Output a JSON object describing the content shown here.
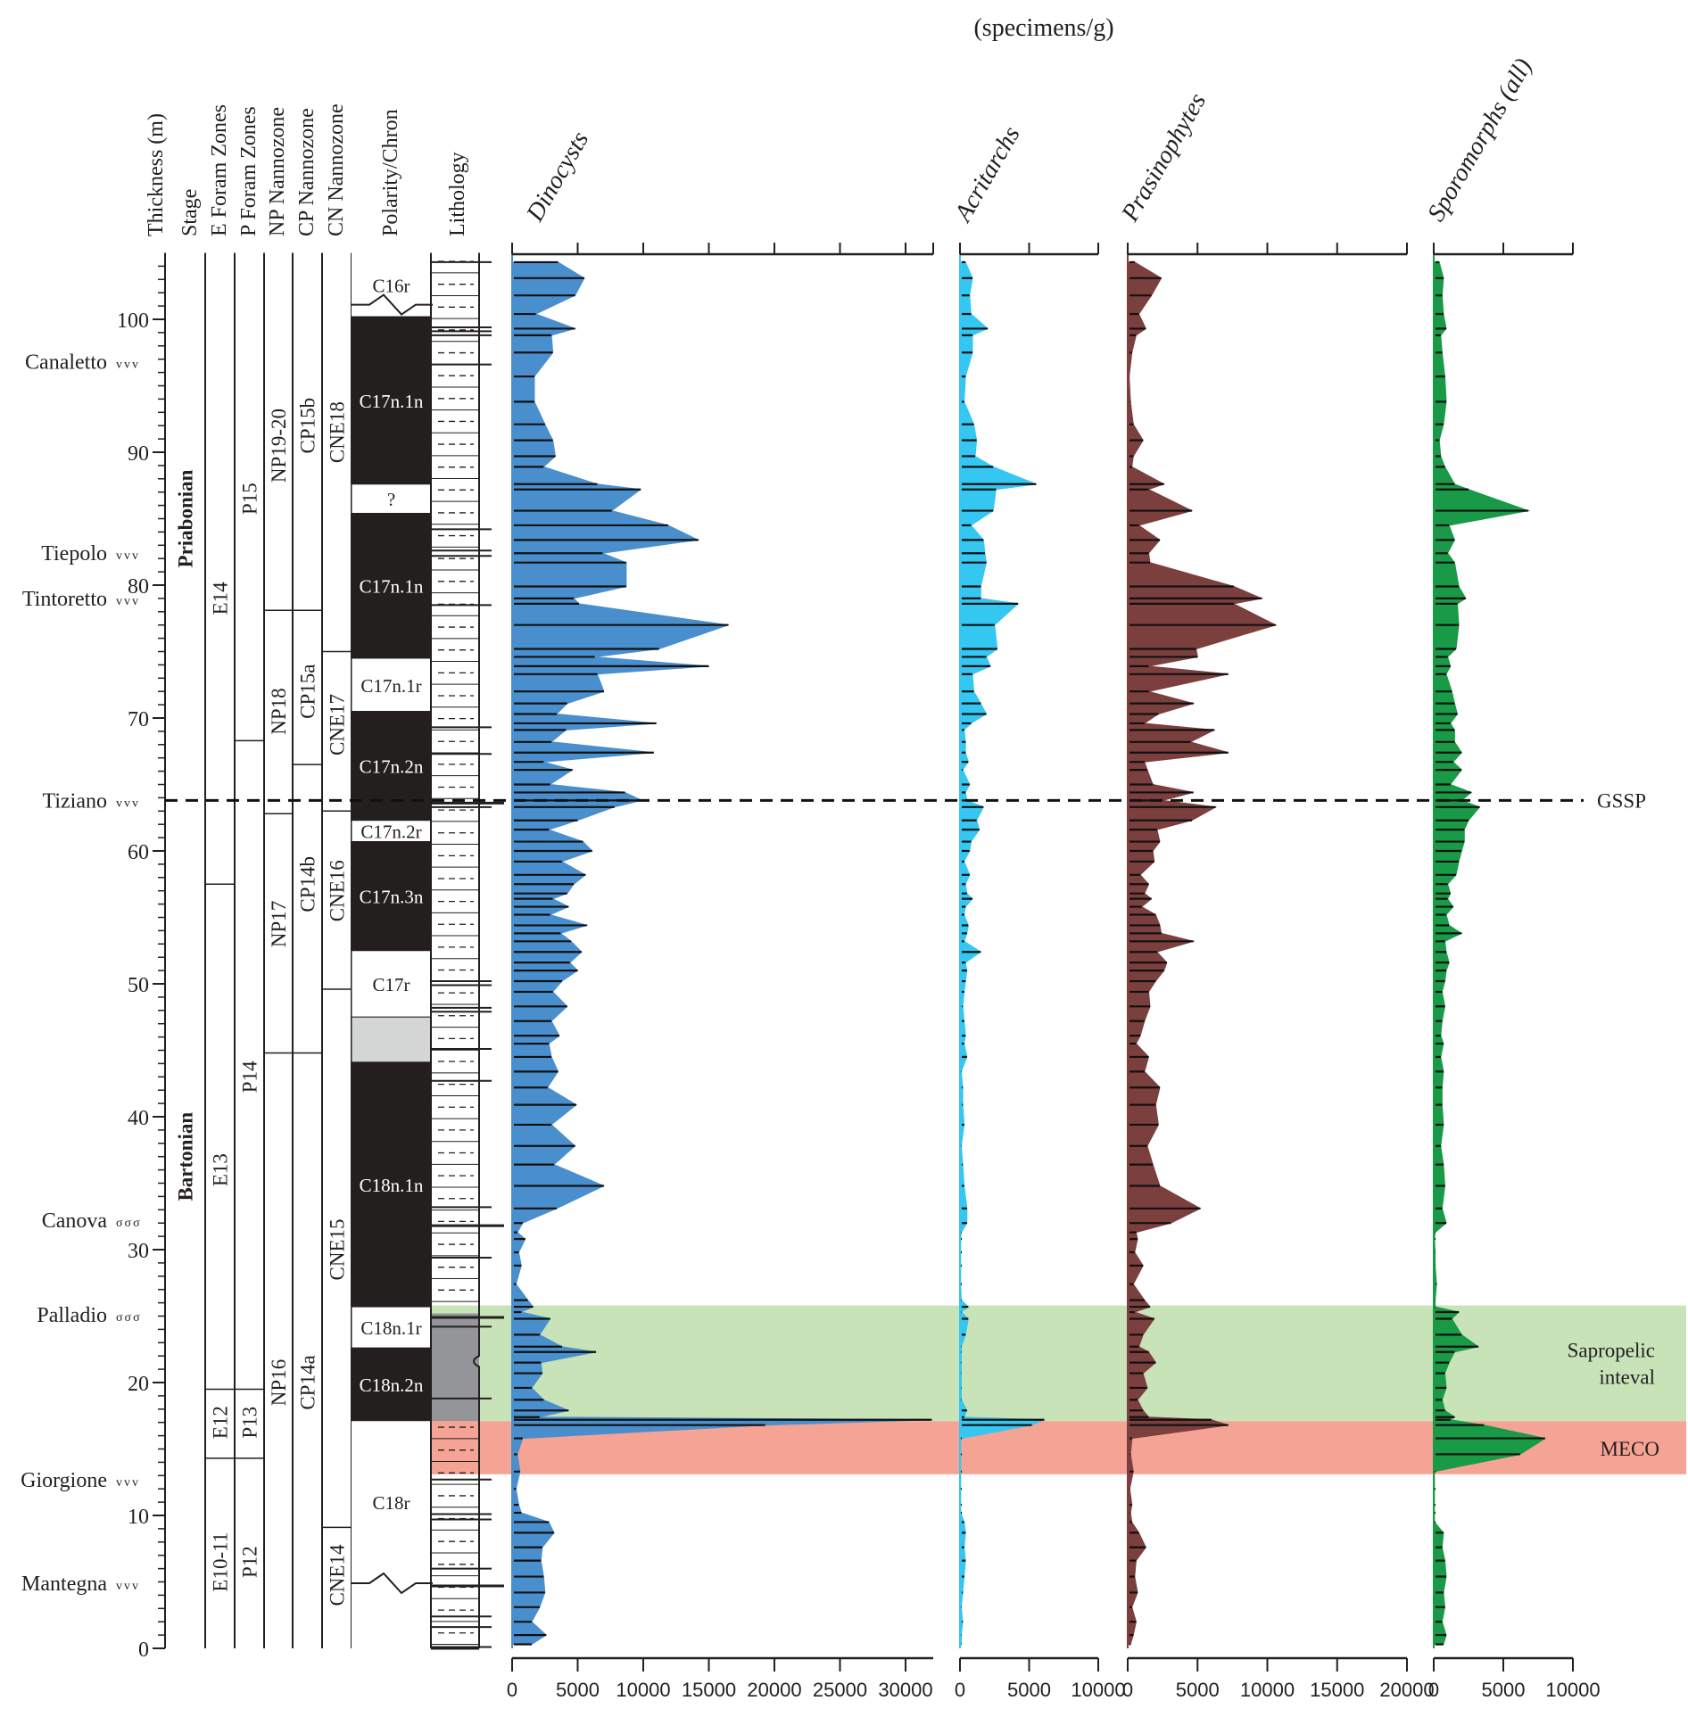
{
  "chart_data": {
    "type": "area",
    "title": "(specimens/g)",
    "ylabel": "Thickness (m)",
    "ylim": [
      0,
      105
    ],
    "y_ticks": [
      0,
      10,
      20,
      30,
      40,
      50,
      60,
      70,
      80,
      90,
      100
    ],
    "column_headers": [
      "Thickness (m)",
      "Stage",
      "E Foram Zones",
      "P Foram Zones",
      "NP Nannozone",
      "CP Nannozone",
      "CN Nannozone",
      "Polarity/Chron",
      "Lithology"
    ],
    "stages": [
      {
        "name": "Priabonian",
        "from": 63.8,
        "to": 105
      },
      {
        "name": "Bartonian",
        "from": 0,
        "to": 63.8
      }
    ],
    "e_foram_zones": [
      {
        "name": "E14",
        "from": 57.5,
        "to": 105
      },
      {
        "name": "E13",
        "from": 19.5,
        "to": 57.5
      },
      {
        "name": "E12",
        "from": 14.3,
        "to": 19.5
      },
      {
        "name": "E10-11",
        "from": 0,
        "to": 14.3
      }
    ],
    "p_foram_zones": [
      {
        "name": "P15",
        "from": 68.3,
        "to": 105
      },
      {
        "name": "P14",
        "from": 19.5,
        "to": 68.3
      },
      {
        "name": "P13",
        "from": 14.3,
        "to": 19.5
      },
      {
        "name": "P12",
        "from": 0,
        "to": 14.3
      }
    ],
    "np_nannozones": [
      {
        "name": "NP19-20",
        "from": 78.1,
        "to": 105
      },
      {
        "name": "NP18",
        "from": 62.8,
        "to": 78.1
      },
      {
        "name": "NP17",
        "from": 44.8,
        "to": 62.8
      },
      {
        "name": "NP16",
        "from": 0,
        "to": 44.8
      }
    ],
    "cp_nannozones": [
      {
        "name": "CP15b",
        "from": 78.1,
        "to": 105
      },
      {
        "name": "CP15a",
        "from": 66.5,
        "to": 78.1
      },
      {
        "name": "CP14b",
        "from": 44.8,
        "to": 66.5
      },
      {
        "name": "CP14a",
        "from": 0,
        "to": 44.8
      }
    ],
    "cn_nannozones": [
      {
        "name": "CNE18",
        "from": 75.0,
        "to": 105
      },
      {
        "name": "CNE17",
        "from": 63.0,
        "to": 75.0
      },
      {
        "name": "CNE16",
        "from": 49.6,
        "to": 63.0
      },
      {
        "name": "CNE15",
        "from": 9.1,
        "to": 49.6
      },
      {
        "name": "CNE14",
        "from": 0,
        "to": 9.1
      }
    ],
    "polarity_chrons": [
      {
        "name": "C16r",
        "from": 100.2,
        "to": 105,
        "polarity": "reversed"
      },
      {
        "name": "C17n.1n",
        "from": 87.6,
        "to": 100.2,
        "polarity": "normal"
      },
      {
        "name": "?",
        "from": 85.4,
        "to": 87.6,
        "polarity": "unknown"
      },
      {
        "name": "C17n.1n",
        "from": 74.5,
        "to": 85.4,
        "polarity": "normal"
      },
      {
        "name": "C17n.1r",
        "from": 70.5,
        "to": 74.5,
        "polarity": "reversed"
      },
      {
        "name": "C17n.2n",
        "from": 62.3,
        "to": 70.5,
        "polarity": "normal"
      },
      {
        "name": "C17n.2r",
        "from": 60.7,
        "to": 62.3,
        "polarity": "reversed"
      },
      {
        "name": "C17n.3n",
        "from": 52.5,
        "to": 60.7,
        "polarity": "normal"
      },
      {
        "name": "C17r",
        "from": 47.5,
        "to": 52.5,
        "polarity": "reversed"
      },
      {
        "name": "",
        "from": 44.1,
        "to": 47.5,
        "polarity": "uncertain"
      },
      {
        "name": "C18n.1n",
        "from": 25.7,
        "to": 44.1,
        "polarity": "normal"
      },
      {
        "name": "C18n.1r",
        "from": 22.6,
        "to": 25.7,
        "polarity": "reversed"
      },
      {
        "name": "C18n.2n",
        "from": 17.1,
        "to": 22.6,
        "polarity": "normal"
      },
      {
        "name": "C18r",
        "from": 0,
        "to": 17.1,
        "polarity": "reversed"
      }
    ],
    "marker_beds": [
      {
        "name": "Canaletto",
        "m": 96.8,
        "symbol": "vvv"
      },
      {
        "name": "Tiepolo",
        "m": 82.4,
        "symbol": "vvv"
      },
      {
        "name": "Tintoretto",
        "m": 79.0,
        "symbol": "vvv"
      },
      {
        "name": "Tiziano",
        "m": 63.8,
        "symbol": "vvv"
      },
      {
        "name": "Canova",
        "m": 32.2,
        "symbol": "σσσ"
      },
      {
        "name": "Palladio",
        "m": 25.1,
        "symbol": "σσσ"
      },
      {
        "name": "Giorgione",
        "m": 12.7,
        "symbol": "vvv"
      },
      {
        "name": "Mantegna",
        "m": 4.9,
        "symbol": "vvv"
      }
    ],
    "annotations": [
      {
        "label": "GSSP",
        "type": "line",
        "m": 63.8
      },
      {
        "label": "Sapropelic inteval",
        "type": "band",
        "from": 17.1,
        "to": 25.8,
        "color": "#c8e3b8"
      },
      {
        "label": "MECO",
        "type": "band",
        "from": 13.1,
        "to": 17.1,
        "color": "#f5a394"
      }
    ],
    "depths": [
      104.3,
      103.1,
      101.8,
      100.4,
      99.3,
      98.8,
      97.5,
      95.7,
      93.8,
      92.1,
      90.9,
      89.7,
      88.9,
      87.6,
      87.2,
      85.6,
      84.5,
      83.4,
      82.4,
      81.7,
      79.9,
      79.0,
      78.6,
      77.0,
      75.2,
      74.6,
      73.9,
      73.3,
      72.0,
      71.1,
      70.3,
      69.6,
      69.1,
      68.2,
      67.4,
      66.7,
      66.1,
      65.0,
      64.4,
      63.8,
      63.3,
      62.3,
      61.6,
      60.7,
      60.0,
      59.2,
      58.2,
      57.5,
      56.8,
      56.4,
      55.8,
      55.2,
      54.4,
      53.8,
      53.2,
      52.4,
      51.6,
      51.0,
      50.2,
      49.4,
      48.3,
      47.2,
      46.1,
      45.5,
      44.5,
      43.4,
      42.2,
      40.9,
      39.4,
      37.8,
      36.4,
      34.8,
      33.1,
      32.0,
      31.3,
      30.8,
      29.8,
      28.8,
      27.4,
      26.2,
      25.7,
      25.3,
      24.8,
      23.6,
      22.7,
      22.3,
      21.5,
      20.7,
      19.6,
      18.7,
      17.9,
      17.4,
      17.2,
      16.8,
      15.8,
      14.6,
      13.3,
      12.0,
      10.8,
      10.2,
      9.5,
      8.7,
      7.6,
      6.6,
      5.4,
      4.2,
      3.1,
      2.0,
      1.0,
      0.3
    ],
    "series": [
      {
        "name": "Dinocysts",
        "color": "#4a8fcd",
        "xlim": [
          0,
          32000
        ],
        "x_ticks": [
          0,
          5000,
          10000,
          15000,
          20000,
          25000,
          30000
        ],
        "values": [
          3500,
          5500,
          4800,
          1800,
          4800,
          3000,
          3100,
          1700,
          1700,
          2500,
          3100,
          3300,
          2400,
          6500,
          9800,
          7600,
          11900,
          14200,
          6900,
          8700,
          8700,
          4700,
          5100,
          16500,
          11200,
          6300,
          15000,
          6500,
          7000,
          4200,
          3400,
          11000,
          4100,
          3000,
          10800,
          2400,
          4600,
          2900,
          8600,
          9900,
          7800,
          5000,
          2800,
          5400,
          6100,
          3800,
          5600,
          4700,
          4200,
          3100,
          4300,
          2900,
          5700,
          3700,
          4500,
          5300,
          4400,
          5000,
          3800,
          3100,
          4200,
          3000,
          3600,
          2800,
          3000,
          3500,
          2700,
          4900,
          3000,
          4800,
          3200,
          7000,
          3400,
          800,
          400,
          1000,
          500,
          700,
          300,
          1200,
          1600,
          700,
          2900,
          2100,
          3800,
          6400,
          2200,
          2300,
          1500,
          2400,
          4300,
          2100,
          32000,
          19300,
          800,
          400,
          600,
          300,
          500,
          700,
          2800,
          3200,
          2300,
          2200,
          2400,
          2500,
          2100,
          1500,
          2600,
          1500
        ]
      },
      {
        "name": "Acritarchs",
        "color": "#33c7f2",
        "xlim": [
          0,
          10000
        ],
        "x_ticks": [
          0,
          5000,
          10000
        ],
        "values": [
          400,
          900,
          700,
          800,
          2000,
          900,
          900,
          400,
          300,
          1000,
          1200,
          1100,
          2400,
          5500,
          2600,
          2400,
          800,
          1700,
          1800,
          1900,
          1500,
          1500,
          4200,
          2500,
          2700,
          1900,
          2200,
          900,
          1000,
          1500,
          1900,
          800,
          300,
          400,
          400,
          600,
          200,
          700,
          400,
          500,
          1700,
          1200,
          1400,
          800,
          700,
          300,
          700,
          400,
          500,
          900,
          400,
          300,
          600,
          500,
          300,
          1500,
          400,
          500,
          400,
          300,
          200,
          300,
          400,
          300,
          500,
          100,
          200,
          200,
          300,
          100,
          200,
          300,
          500,
          500,
          100,
          50,
          50,
          50,
          50,
          100,
          600,
          100,
          600,
          400,
          100,
          100,
          100,
          100,
          100,
          100,
          500,
          300,
          6100,
          5200,
          50,
          50,
          50,
          50,
          50,
          50,
          300,
          400,
          300,
          400,
          300,
          200,
          100,
          200,
          100,
          100
        ]
      },
      {
        "name": "Prasinophytes",
        "color": "#7b3f3e",
        "xlim": [
          0,
          20000
        ],
        "x_ticks": [
          0,
          5000,
          10000,
          15000,
          20000
        ],
        "values": [
          500,
          2400,
          1700,
          800,
          1300,
          600,
          300,
          100,
          200,
          400,
          1100,
          400,
          300,
          2600,
          1500,
          4600,
          800,
          2300,
          1500,
          1600,
          7600,
          9600,
          7600,
          10600,
          4900,
          5000,
          1500,
          7200,
          1500,
          4700,
          2200,
          1200,
          6200,
          4500,
          7200,
          1200,
          1400,
          1800,
          4700,
          2500,
          6300,
          4600,
          2100,
          2300,
          1800,
          1900,
          900,
          1500,
          1200,
          1700,
          1000,
          2000,
          2300,
          2400,
          4700,
          2100,
          2800,
          2600,
          2000,
          1500,
          1600,
          1200,
          900,
          600,
          1500,
          1200,
          2300,
          2000,
          2200,
          1400,
          1800,
          2300,
          5200,
          3100,
          600,
          700,
          500,
          1100,
          400,
          1200,
          1600,
          500,
          1900,
          1100,
          800,
          1500,
          2000,
          1100,
          1400,
          700,
          1100,
          1500,
          6000,
          7200,
          300,
          200,
          400,
          150,
          300,
          200,
          300,
          800,
          1300,
          600,
          500,
          700,
          300,
          600,
          400,
          200
        ]
      },
      {
        "name": "Sporomorphs (all)",
        "color": "#189a47",
        "xlim": [
          0,
          10000
        ],
        "x_ticks": [
          0,
          5000,
          10000
        ],
        "values": [
          400,
          700,
          600,
          700,
          900,
          500,
          600,
          800,
          900,
          700,
          400,
          500,
          800,
          1500,
          2500,
          6800,
          1100,
          1500,
          1000,
          1500,
          1800,
          2300,
          1700,
          1800,
          1600,
          1000,
          1200,
          900,
          1300,
          1500,
          1700,
          1200,
          1500,
          1500,
          2000,
          1400,
          2000,
          1200,
          2700,
          2000,
          3300,
          2500,
          2200,
          2200,
          2000,
          1800,
          1600,
          1000,
          1200,
          1000,
          1400,
          900,
          1100,
          2000,
          800,
          900,
          1100,
          900,
          800,
          600,
          800,
          600,
          500,
          700,
          500,
          700,
          600,
          600,
          700,
          500,
          700,
          800,
          600,
          900,
          100,
          50,
          100,
          100,
          200,
          100,
          100,
          1800,
          1300,
          2000,
          3200,
          1500,
          1100,
          800,
          900,
          600,
          800,
          1500,
          1200,
          3600,
          8000,
          6200,
          50,
          50,
          50,
          50,
          50,
          700,
          600,
          800,
          900,
          700,
          800,
          600,
          900,
          700,
          300
        ]
      }
    ]
  }
}
